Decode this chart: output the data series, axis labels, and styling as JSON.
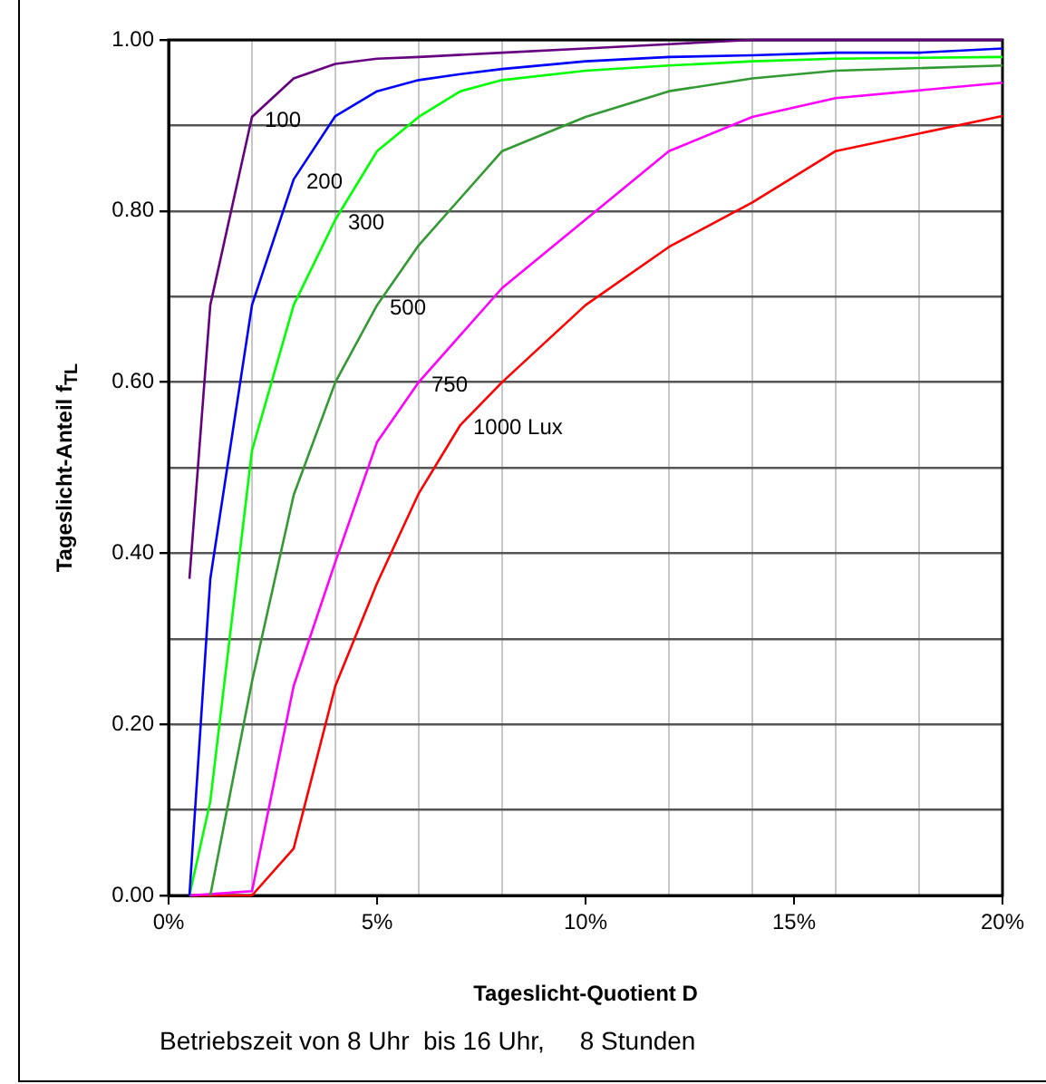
{
  "chart_data": {
    "type": "line",
    "xlabel": "Tageslicht-Quotient  D",
    "ylabel": "Tageslicht-Anteil  f$_{TL}$",
    "xlim": [
      0,
      20
    ],
    "ylim": [
      0,
      1
    ],
    "xticks": [
      {
        "value": 0,
        "label": "0%"
      },
      {
        "value": 2,
        "label": null
      },
      {
        "value": 4,
        "label": null
      },
      {
        "value": 5,
        "label": "5%"
      },
      {
        "value": 6,
        "label": null
      },
      {
        "value": 8,
        "label": null
      },
      {
        "value": 10,
        "label": "10%"
      },
      {
        "value": 12,
        "label": null
      },
      {
        "value": 14,
        "label": null
      },
      {
        "value": 15,
        "label": "15%"
      },
      {
        "value": 16,
        "label": null
      },
      {
        "value": 18,
        "label": null
      },
      {
        "value": 20,
        "label": "20%"
      }
    ],
    "yticks": [
      {
        "value": 0,
        "label": "0.00"
      },
      {
        "value": 0.1,
        "label": null
      },
      {
        "value": 0.2,
        "label": "0.20"
      },
      {
        "value": 0.3,
        "label": null
      },
      {
        "value": 0.4,
        "label": "0.40"
      },
      {
        "value": 0.5,
        "label": null
      },
      {
        "value": 0.6,
        "label": "0.60"
      },
      {
        "value": 0.7,
        "label": null
      },
      {
        "value": 0.8,
        "label": "0.80"
      },
      {
        "value": 0.9,
        "label": null
      },
      {
        "value": 1,
        "label": "1.00"
      }
    ],
    "grid": true,
    "legend": false,
    "marker": "none",
    "line_style": "solid",
    "series": [
      {
        "name": "100",
        "color": "#660080",
        "x": [
          0.5,
          1,
          2,
          3,
          4,
          5,
          6,
          8,
          10,
          12,
          14,
          20
        ],
        "values": [
          0.37,
          0.69,
          0.91,
          0.955,
          0.972,
          0.978,
          0.98,
          0.985,
          0.99,
          0.995,
          1.0,
          1.0
        ]
      },
      {
        "name": "200",
        "color": "#0000ff",
        "x": [
          0.5,
          1,
          2,
          3,
          4,
          5,
          6,
          7,
          8,
          10,
          12,
          14,
          16,
          18,
          20
        ],
        "values": [
          0,
          0.37,
          0.69,
          0.837,
          0.911,
          0.94,
          0.953,
          0.96,
          0.966,
          0.975,
          0.98,
          0.982,
          0.985,
          0.985,
          0.99
        ]
      },
      {
        "name": "300",
        "color": "#00ff00",
        "x": [
          0.5,
          1,
          2,
          3,
          4,
          5,
          6,
          7,
          8,
          10,
          12,
          14,
          16,
          20
        ],
        "values": [
          0,
          0.11,
          0.52,
          0.69,
          0.79,
          0.87,
          0.91,
          0.94,
          0.953,
          0.964,
          0.97,
          0.975,
          0.978,
          0.98
        ]
      },
      {
        "name": "500",
        "color": "#339933",
        "x": [
          1,
          2,
          3,
          4,
          5,
          6,
          8,
          10,
          12,
          14,
          16,
          20
        ],
        "values": [
          0,
          0.25,
          0.468,
          0.6,
          0.69,
          0.76,
          0.87,
          0.91,
          0.94,
          0.955,
          0.964,
          0.97
        ]
      },
      {
        "name": "750",
        "color": "#ff00ff",
        "x": [
          0.5,
          2,
          3,
          4,
          5,
          6,
          7,
          8,
          10,
          12,
          14,
          16,
          20
        ],
        "values": [
          0,
          0.005,
          0.245,
          0.39,
          0.53,
          0.6,
          0.655,
          0.71,
          0.79,
          0.87,
          0.91,
          0.932,
          0.95
        ]
      },
      {
        "name": "1000 Lux",
        "color": "#ff0000",
        "x": [
          0.5,
          2,
          3,
          4,
          5,
          6,
          7,
          8,
          10,
          12,
          14,
          16,
          20
        ],
        "values": [
          0,
          0,
          0.055,
          0.245,
          0.365,
          0.47,
          0.55,
          0.6,
          0.69,
          0.758,
          0.81,
          0.87,
          0.911
        ]
      }
    ],
    "annotations": [
      "Betriebszeit von 8 Uhr  bis 16 Uhr,     8 Stunden"
    ]
  }
}
